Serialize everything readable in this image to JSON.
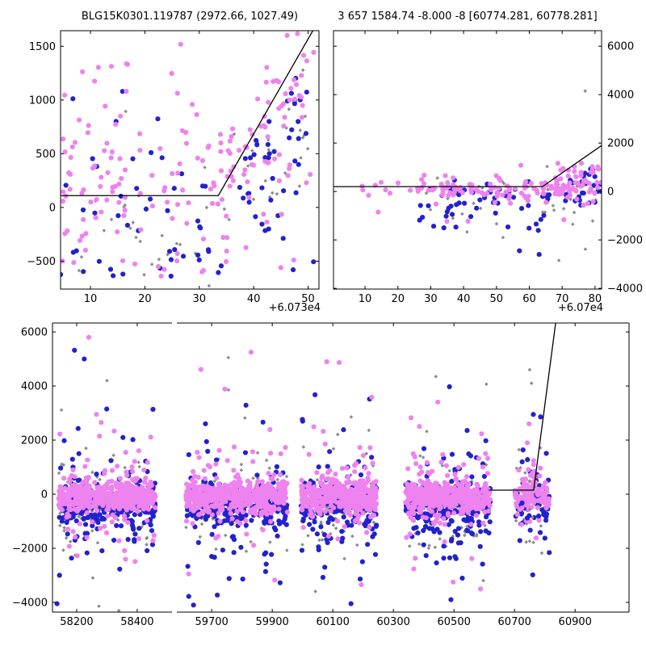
{
  "titles": {
    "left": "BLG15K0301.119787 (2972.66, 1027.49)",
    "right": "3 657 1584.74 -8.000 -8 [60774.281, 60778.281]"
  },
  "palette": {
    "violet": "#EE82EE",
    "blue": "#2222CC",
    "gray": "#8C8C8C",
    "line": "#000000",
    "background": "#FFFFFF",
    "axis": "#000000"
  },
  "chart_data": [
    {
      "id": "upper-left",
      "type": "scatter",
      "xlim": [
        4.5,
        52
      ],
      "ylim": [
        -760,
        1645
      ],
      "xticks": [
        10,
        20,
        30,
        40,
        50
      ],
      "yticks": [
        -500,
        0,
        500,
        1000,
        1500
      ],
      "x_offset_label": "+6.073e4",
      "ytick_side": "left",
      "line": [
        [
          4.5,
          110
        ],
        [
          33.5,
          110
        ],
        [
          51.5,
          1700
        ]
      ],
      "components": [
        {
          "color": "gray",
          "n": 20,
          "x": [
            4.5,
            36
          ],
          "y": {
            "c": -60,
            "s": 350
          }
        },
        {
          "color": "gray",
          "n": 6,
          "x": [
            4.5,
            36
          ],
          "y": [
            -600,
            1100
          ]
        },
        {
          "color": "gray",
          "n": 6,
          "x": {
            "c": 40,
            "s": 2
          },
          "y": {
            "c": 220,
            "s": 250
          }
        },
        {
          "color": "gray",
          "n": 7,
          "x": {
            "c": 44,
            "s": 2
          },
          "y": {
            "c": 450,
            "s": 250
          }
        },
        {
          "color": "gray",
          "n": 6,
          "x": {
            "c": 47,
            "s": 1.8
          },
          "y": {
            "c": 700,
            "s": 260
          }
        },
        {
          "color": "gray",
          "n": 4,
          "x": {
            "c": 49,
            "s": 1
          },
          "y": {
            "c": 950,
            "s": 200
          }
        },
        {
          "color": "blue",
          "n": 40,
          "x": [
            4.5,
            36
          ],
          "y": {
            "c": -140,
            "s": 380
          }
        },
        {
          "color": "blue",
          "n": 10,
          "x": [
            4.5,
            36
          ],
          "y": [
            -640,
            1200
          ]
        },
        {
          "color": "blue",
          "n": 8,
          "x": {
            "c": 39,
            "s": 2
          },
          "y": {
            "c": 150,
            "s": 300
          }
        },
        {
          "color": "blue",
          "n": 9,
          "x": {
            "c": 43,
            "s": 2
          },
          "y": {
            "c": 420,
            "s": 300
          }
        },
        {
          "color": "blue",
          "n": 9,
          "x": {
            "c": 46,
            "s": 1.8
          },
          "y": {
            "c": 700,
            "s": 300
          }
        },
        {
          "color": "blue",
          "n": 7,
          "x": {
            "c": 48.5,
            "s": 1.2
          },
          "y": {
            "c": 1000,
            "s": 280
          }
        },
        {
          "color": "blue",
          "n": 10,
          "x": [
            36,
            51
          ],
          "y": {
            "c": -150,
            "s": 350
          }
        },
        {
          "color": "violet",
          "n": 90,
          "x": [
            4.5,
            36
          ],
          "y": {
            "c": 220,
            "s": 400
          }
        },
        {
          "color": "violet",
          "n": 26,
          "x": [
            4.5,
            36
          ],
          "y": [
            -640,
            1570
          ]
        },
        {
          "color": "violet",
          "n": 12,
          "x": {
            "c": 37,
            "s": 1.5
          },
          "y": {
            "c": 350,
            "s": 260
          }
        },
        {
          "color": "violet",
          "n": 13,
          "x": {
            "c": 41,
            "s": 1.5
          },
          "y": {
            "c": 600,
            "s": 260
          }
        },
        {
          "color": "violet",
          "n": 13,
          "x": {
            "c": 44,
            "s": 1.5
          },
          "y": {
            "c": 800,
            "s": 280
          }
        },
        {
          "color": "violet",
          "n": 11,
          "x": {
            "c": 47,
            "s": 1.5
          },
          "y": {
            "c": 1080,
            "s": 260
          }
        },
        {
          "color": "violet",
          "n": 7,
          "x": {
            "c": 49,
            "s": 1.2
          },
          "y": {
            "c": 1330,
            "s": 200
          }
        },
        {
          "color": "violet",
          "n": 14,
          "x": [
            36,
            51
          ],
          "y": {
            "c": 250,
            "s": 300
          }
        }
      ],
      "outliers": [
        [
          23,
          -640,
          "violet"
        ],
        [
          30.5,
          -600,
          "violet"
        ],
        [
          45,
          -560,
          "violet"
        ]
      ]
    },
    {
      "id": "upper-right",
      "type": "scatter",
      "xlim": [
        0.4,
        82
      ],
      "ylim": [
        -4030,
        6640
      ],
      "xticks": [
        10,
        20,
        30,
        40,
        50,
        60,
        70,
        80
      ],
      "yticks": [
        -4000,
        -2000,
        0,
        2000,
        4000,
        6000
      ],
      "x_offset_label": "+6.07e4",
      "ytick_side": "right",
      "line": [
        [
          0.4,
          200
        ],
        [
          64,
          200
        ],
        [
          82,
          1900
        ]
      ],
      "components": [
        {
          "color": "gray",
          "n": 28,
          "x": [
            28,
            81
          ],
          "y": {
            "c": -350,
            "s": 750
          }
        },
        {
          "color": "gray",
          "n": 6,
          "x": [
            45,
            80
          ],
          "y": [
            -2600,
            400
          ]
        },
        {
          "color": "gray",
          "n": 6,
          "x": {
            "c": 73,
            "s": 3
          },
          "y": {
            "c": 400,
            "s": 300
          }
        },
        {
          "color": "blue",
          "n": 55,
          "x": [
            26,
            81
          ],
          "y": {
            "c": -280,
            "s": 420
          }
        },
        {
          "color": "blue",
          "n": 12,
          "x": [
            26,
            81
          ],
          "y": {
            "c": -900,
            "s": 700
          }
        },
        {
          "color": "blue",
          "n": 10,
          "x": {
            "c": 76,
            "s": 2.5
          },
          "y": {
            "c": 350,
            "s": 350
          }
        },
        {
          "color": "blue",
          "n": 5,
          "x": {
            "c": 80,
            "s": 1.5
          },
          "y": {
            "c": 800,
            "s": 300
          }
        },
        {
          "color": "violet",
          "n": 9,
          "x": [
            8,
            24
          ],
          "y": {
            "c": 120,
            "s": 160
          }
        },
        {
          "color": "violet",
          "n": 120,
          "x": [
            26,
            81
          ],
          "y": {
            "c": 130,
            "s": 230
          }
        },
        {
          "color": "violet",
          "n": 18,
          "x": [
            26,
            81
          ],
          "y": {
            "c": 0,
            "s": 600
          }
        },
        {
          "color": "violet",
          "n": 16,
          "x": {
            "c": 74,
            "s": 3
          },
          "y": {
            "c": 700,
            "s": 350
          }
        },
        {
          "color": "violet",
          "n": 8,
          "x": {
            "c": 79,
            "s": 2
          },
          "y": {
            "c": 1100,
            "s": 300
          }
        }
      ],
      "outliers": [
        [
          77,
          4150,
          "gray"
        ],
        [
          14,
          -850,
          "violet"
        ],
        [
          34,
          -1500,
          "blue"
        ],
        [
          57,
          -2450,
          "blue"
        ],
        [
          63,
          -2600,
          "blue"
        ],
        [
          69,
          -2850,
          "gray"
        ],
        [
          52,
          -1900,
          "gray"
        ]
      ]
    },
    {
      "id": "bottom",
      "type": "scatter-broken-x",
      "ylim": [
        -4360,
        6330
      ],
      "yticks": [
        -4000,
        -2000,
        0,
        2000,
        4000,
        6000
      ],
      "segments": [
        {
          "xlim": [
            58120,
            58515
          ],
          "xticks": [
            58200,
            58400
          ]
        },
        {
          "xlim": [
            59585,
            61078
          ],
          "xticks": [
            59700,
            59900,
            60100,
            60300,
            60500,
            60700,
            60900
          ]
        }
      ],
      "line": [
        [
          60615,
          150
        ],
        [
          60763,
          150
        ],
        [
          60840,
          6700
        ]
      ],
      "seasons": [
        {
          "x": [
            58140,
            58460
          ],
          "scale": 1.0
        },
        {
          "x": [
            59615,
            59950
          ],
          "scale": 1.0
        },
        {
          "x": [
            59995,
            60245
          ],
          "scale": 0.85
        },
        {
          "x": [
            60340,
            60620
          ],
          "scale": 0.95
        },
        {
          "x": [
            60700,
            60815
          ],
          "scale": 0.22
        }
      ],
      "season_components": [
        {
          "color": "gray",
          "n": 70,
          "y": {
            "c": -300,
            "s": 800
          }
        },
        {
          "color": "gray",
          "n": 14,
          "y": {
            "c": 100,
            "s": 2200
          }
        },
        {
          "color": "blue",
          "n": 190,
          "y": {
            "c": -430,
            "s": 400
          }
        },
        {
          "color": "blue",
          "n": 65,
          "y": {
            "c": -600,
            "s": 1300
          }
        },
        {
          "color": "blue",
          "n": 15,
          "y": {
            "c": -200,
            "s": 2500
          }
        },
        {
          "color": "violet",
          "n": 430,
          "y": {
            "c": -80,
            "s": 270
          }
        },
        {
          "color": "violet",
          "n": 80,
          "y": {
            "c": -50,
            "s": 800
          }
        },
        {
          "color": "violet",
          "n": 20,
          "y": {
            "c": 300,
            "s": 2000
          }
        }
      ],
      "extra_components": [
        {
          "color": "violet",
          "n": 14,
          "x": {
            "c": 60757,
            "s": 12
          },
          "y": {
            "c": 700,
            "s": 450
          }
        },
        {
          "color": "blue",
          "n": 5,
          "x": {
            "c": 60760,
            "s": 15
          },
          "y": {
            "c": -1300,
            "s": 600
          }
        },
        {
          "color": "gray",
          "n": 5,
          "x": {
            "c": 60765,
            "s": 20
          },
          "y": {
            "c": -1500,
            "s": 900
          }
        }
      ],
      "outliers": [
        [
          58240,
          5800,
          "violet"
        ],
        [
          58225,
          5000,
          "blue"
        ],
        [
          58300,
          4200,
          "gray"
        ],
        [
          59755,
          5050,
          "gray"
        ],
        [
          59830,
          5250,
          "violet"
        ],
        [
          60080,
          4900,
          "violet"
        ],
        [
          60440,
          4350,
          "gray"
        ],
        [
          60750,
          4600,
          "gray"
        ],
        [
          60756,
          4100,
          "gray"
        ],
        [
          60748,
          2600,
          "violet"
        ],
        [
          60762,
          2950,
          "blue"
        ],
        [
          58135,
          -4050,
          "blue"
        ],
        [
          59640,
          -4100,
          "blue"
        ],
        [
          60160,
          -4050,
          "blue"
        ],
        [
          60490,
          -3900,
          "blue"
        ]
      ]
    }
  ]
}
